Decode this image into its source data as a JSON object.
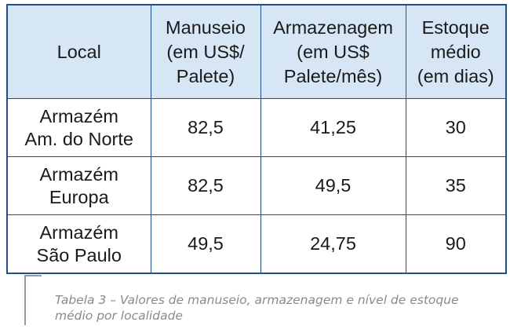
{
  "table": {
    "headers": [
      {
        "lines": [
          "Local"
        ]
      },
      {
        "lines": [
          "Manuseio",
          "(em US$/",
          "Palete)"
        ]
      },
      {
        "lines": [
          "Armazenagem",
          "(em US$",
          "Palete/mês)"
        ]
      },
      {
        "lines": [
          "Estoque",
          "médio",
          "(em dias)"
        ]
      }
    ],
    "rows": [
      {
        "local": [
          "Armazém",
          "Am. do Norte"
        ],
        "manuseio": "82,5",
        "armazenagem": "41,25",
        "estoque": "30"
      },
      {
        "local": [
          "Armazém",
          "Europa"
        ],
        "manuseio": "82,5",
        "armazenagem": "49,5",
        "estoque": "35"
      },
      {
        "local": [
          "Armazém",
          "São Paulo"
        ],
        "manuseio": "49,5",
        "armazenagem": "24,75",
        "estoque": "90"
      }
    ]
  },
  "caption": {
    "line1": "Tabela 3 – Valores de manuseio, armazenagem e nível de estoque",
    "line2": "médio por localidade"
  },
  "colors": {
    "border": "#1f4e8c",
    "header_bg": "#d6e6f5",
    "caption_text": "#8a8a8a"
  }
}
